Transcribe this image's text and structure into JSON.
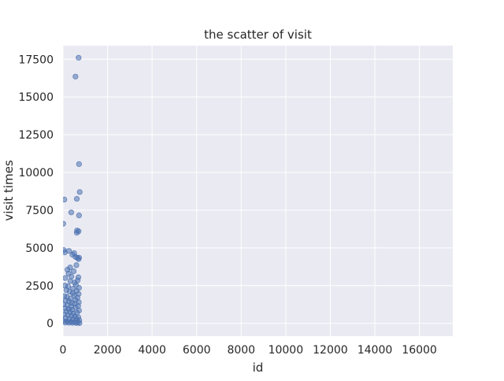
{
  "chart_data": {
    "type": "scatter",
    "title": "the scatter of visit",
    "xlabel": "id",
    "ylabel": "visit times",
    "xlim": [
      0,
      17500
    ],
    "ylim": [
      -850,
      18400
    ],
    "xticks": [
      0,
      2000,
      4000,
      6000,
      8000,
      10000,
      12000,
      14000,
      16000
    ],
    "yticks": [
      0,
      2500,
      5000,
      7500,
      10000,
      12500,
      15000,
      17500
    ],
    "grid": true,
    "style": "seaborn-darkgrid",
    "marker_color": "#4c72b0",
    "background_color": "#eaeaf2",
    "x": [
      700,
      560,
      720,
      750,
      60,
      620,
      720,
      370,
      700,
      620,
      630,
      10,
      40,
      80,
      270,
      420,
      500,
      560,
      640,
      700,
      720,
      200,
      320,
      600,
      250,
      380,
      480,
      690,
      100,
      330,
      520,
      660,
      90,
      230,
      450,
      580,
      720,
      150,
      300,
      440,
      610,
      700,
      60,
      180,
      340,
      500,
      650,
      120,
      270,
      400,
      560,
      710,
      30,
      200,
      360,
      520,
      680,
      90,
      250,
      410,
      570,
      720,
      150,
      310,
      470,
      630,
      50,
      220,
      380,
      540,
      690,
      120,
      280,
      440,
      600,
      730,
      20,
      180,
      350,
      510,
      670,
      100,
      260,
      420,
      590,
      740
    ],
    "y": [
      17600,
      16350,
      10550,
      8700,
      8200,
      8250,
      7150,
      7350,
      6100,
      6000,
      6150,
      6600,
      4850,
      4700,
      4800,
      4550,
      4650,
      4400,
      4350,
      4250,
      4350,
      3550,
      3700,
      3850,
      3300,
      3100,
      3450,
      3050,
      3000,
      2800,
      2700,
      2850,
      2500,
      2450,
      2300,
      2550,
      2350,
      2200,
      2100,
      2000,
      2150,
      1950,
      1800,
      1750,
      1650,
      1850,
      1700,
      1500,
      1450,
      1350,
      1550,
      1400,
      1250,
      1200,
      1100,
      1300,
      1150,
      1000,
      950,
      900,
      1050,
      850,
      800,
      750,
      650,
      700,
      600,
      550,
      500,
      450,
      400,
      350,
      300,
      250,
      280,
      200,
      150,
      120,
      100,
      80,
      60,
      50,
      40,
      30,
      20,
      10
    ]
  }
}
